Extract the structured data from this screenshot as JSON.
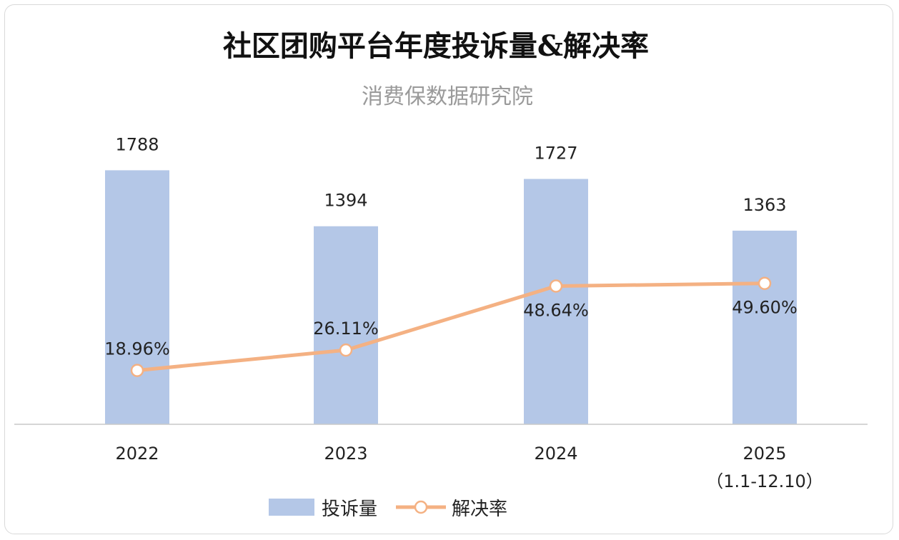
{
  "chart_data": {
    "type": "bar",
    "title": "社区团购平台年度投诉量&解决率",
    "subtitle": "消费保数据研究院",
    "categories": [
      "2022",
      "2023",
      "2024",
      "2025"
    ],
    "category_sublabels": [
      "",
      "",
      "",
      "（1.1-12.10）"
    ],
    "series": [
      {
        "name": "投诉量",
        "type": "bar",
        "values": [
          1788,
          1394,
          1727,
          1363
        ],
        "labels": [
          "1788",
          "1394",
          "1727",
          "1363"
        ],
        "color": "#b4c7e7"
      },
      {
        "name": "解决率",
        "type": "line",
        "values": [
          18.96,
          26.11,
          48.64,
          49.6
        ],
        "labels": [
          "18.96%",
          "26.11%",
          "48.64%",
          "49.60%"
        ],
        "color": "#f4b183"
      }
    ],
    "ylim_bar": [
      0,
      1800
    ],
    "ylim_line": [
      0,
      90
    ],
    "grid": false,
    "legend_position": "bottom"
  }
}
